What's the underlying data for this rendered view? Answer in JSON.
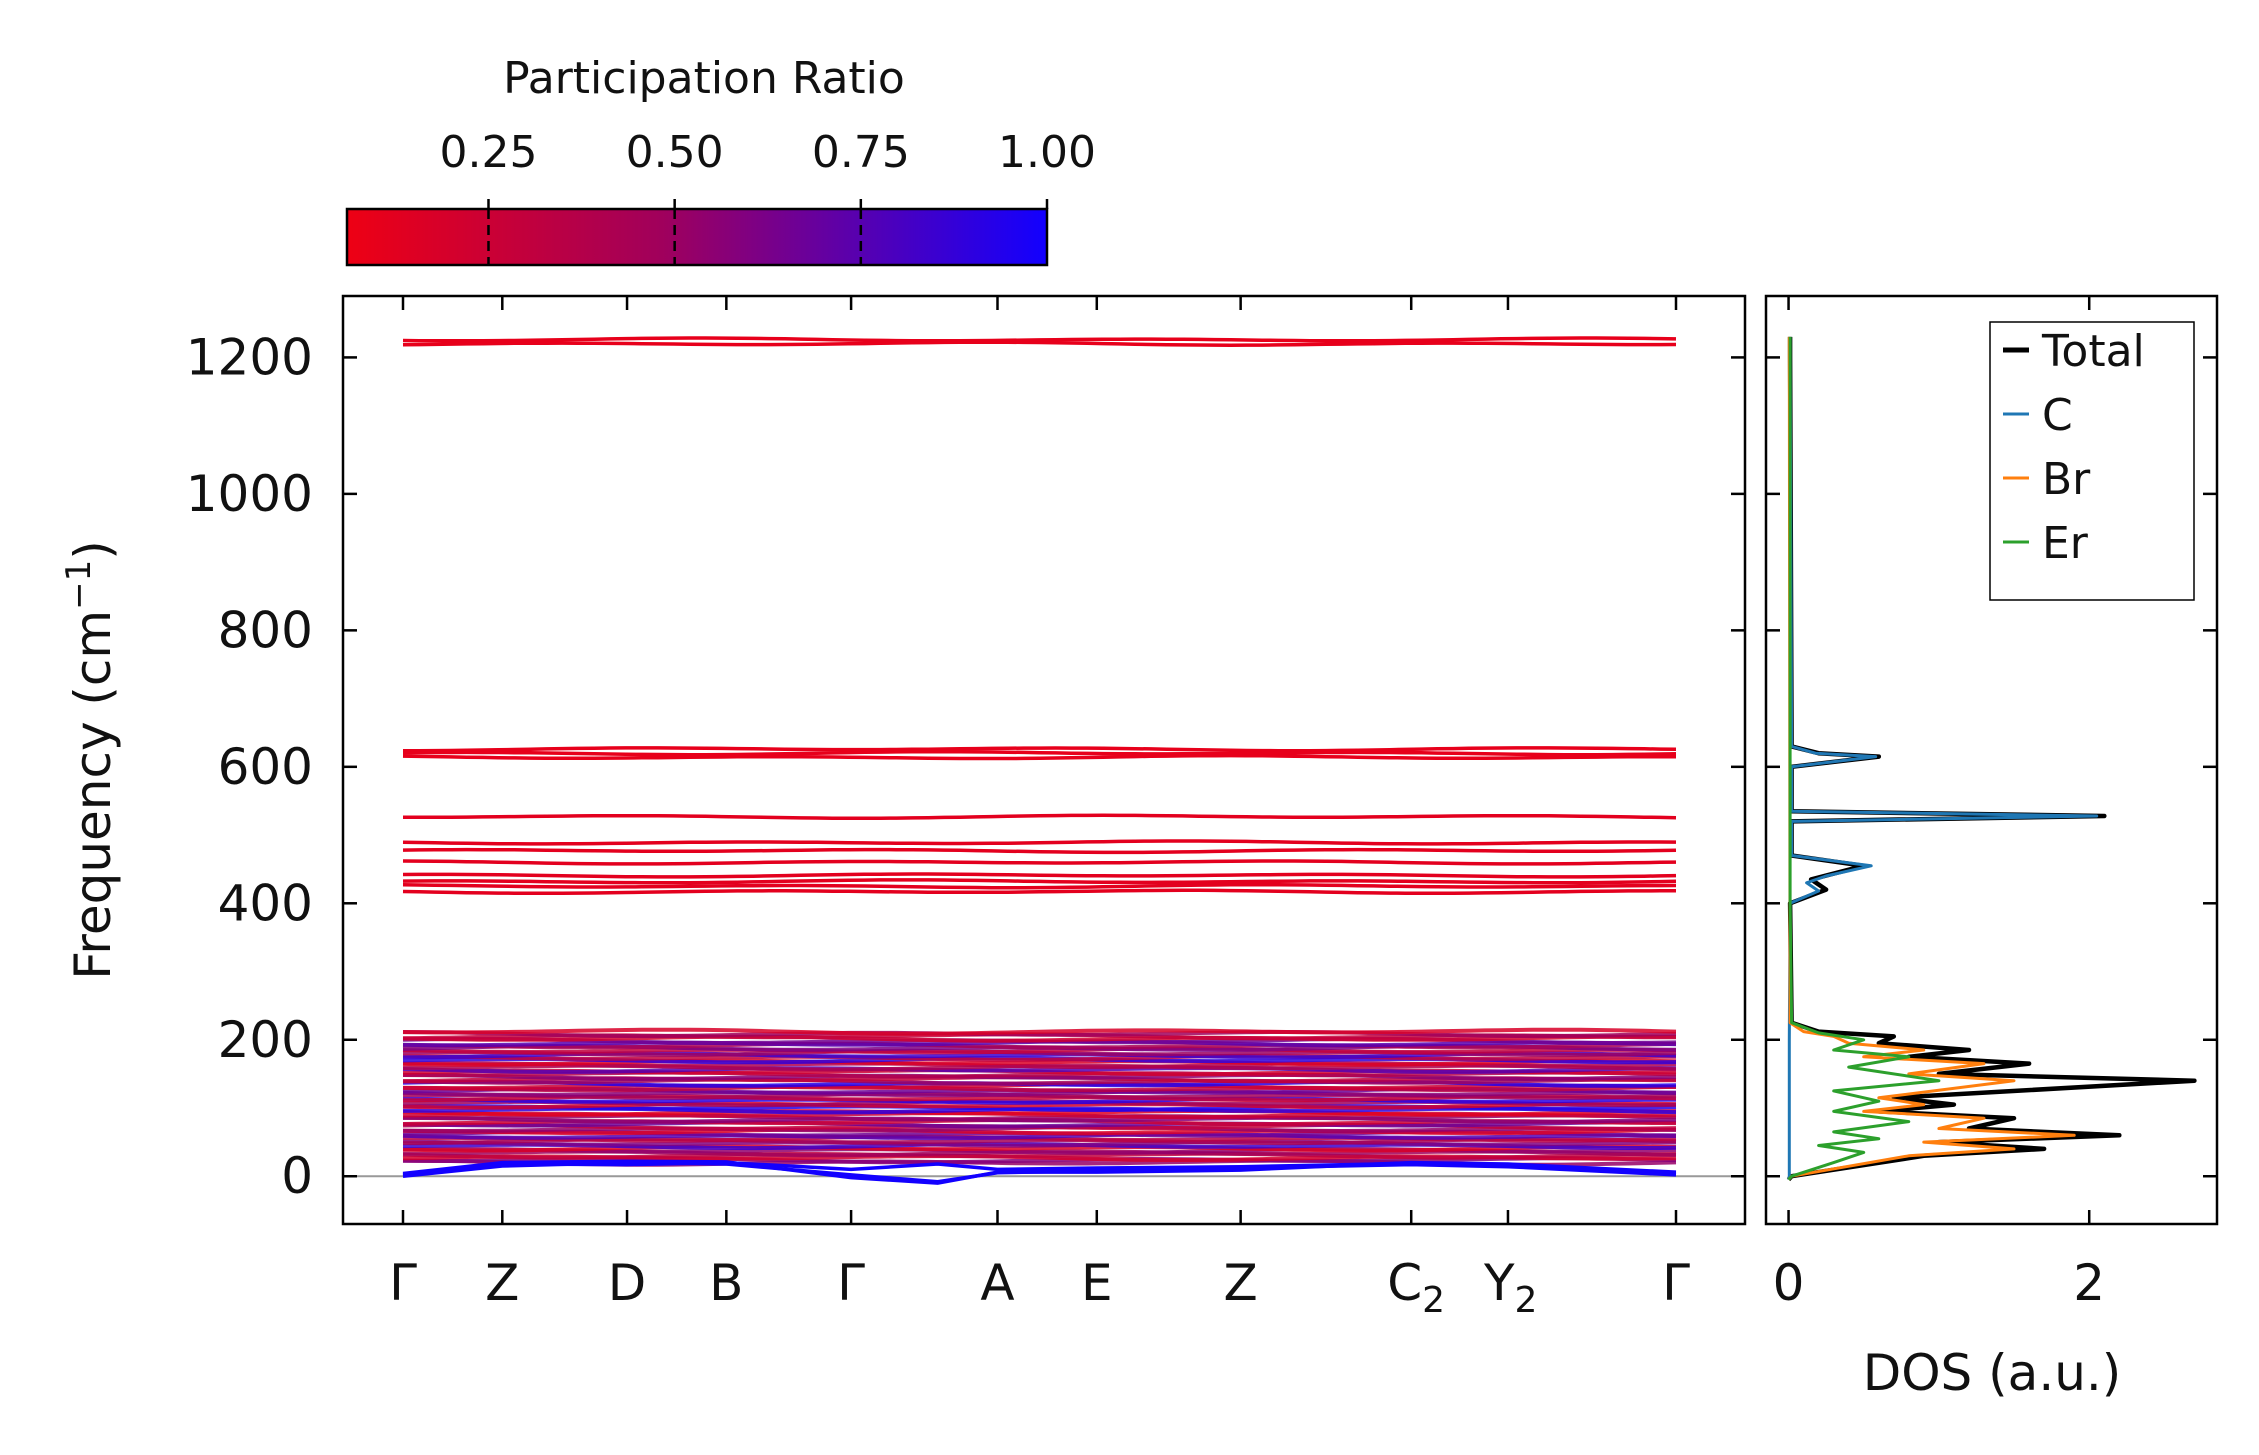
{
  "colorbar": {
    "title": "Participation Ratio",
    "ticks": [
      "0.25",
      "0.50",
      "0.75",
      "1.00"
    ],
    "tick_values": [
      0.25,
      0.5,
      0.75,
      1.0
    ],
    "range": [
      0.06,
      1.0
    ],
    "color_low": "#ee0014",
    "color_mid": "#a0005c",
    "color_high": "#1200ff"
  },
  "chart_data": [
    {
      "type": "line",
      "name": "phonon-band-structure",
      "ylabel": "Frequency (cm",
      "ylabel_sup": "−1",
      "ylabel_close": ")",
      "ylim": [
        -70,
        1290
      ],
      "y_ticks": [
        0,
        200,
        400,
        600,
        800,
        1000,
        1200
      ],
      "y_tick_labels": [
        "0",
        "200",
        "400",
        "600",
        "800",
        "1000",
        "1200"
      ],
      "k_labels": [
        {
          "main": "Γ",
          "sub": "",
          "pos": 0.0
        },
        {
          "main": "Z",
          "sub": "",
          "pos": 0.078
        },
        {
          "main": "D",
          "sub": "",
          "pos": 0.176
        },
        {
          "main": "B",
          "sub": "",
          "pos": 0.254
        },
        {
          "main": "Γ",
          "sub": "",
          "pos": 0.352
        },
        {
          "main": "A",
          "sub": "",
          "pos": 0.467
        },
        {
          "main": "E",
          "sub": "",
          "pos": 0.545
        },
        {
          "main": "Z",
          "sub": "",
          "pos": 0.658
        },
        {
          "main": "C",
          "sub": "2",
          "pos": 0.792
        },
        {
          "main": "Y",
          "sub": "2",
          "pos": 0.868
        },
        {
          "main": "Γ",
          "sub": "",
          "pos": 1.0
        }
      ],
      "high_bands": [
        {
          "freq": 1220,
          "pr": 0.1
        },
        {
          "freq": 1226,
          "pr": 0.1
        },
        {
          "freq": 614,
          "pr": 0.1
        },
        {
          "freq": 620,
          "pr": 0.1
        },
        {
          "freq": 626,
          "pr": 0.1
        },
        {
          "freq": 527,
          "pr": 0.12
        },
        {
          "freq": 489,
          "pr": 0.12
        },
        {
          "freq": 477,
          "pr": 0.12
        },
        {
          "freq": 460,
          "pr": 0.12
        },
        {
          "freq": 441,
          "pr": 0.12
        },
        {
          "freq": 432,
          "pr": 0.12
        },
        {
          "freq": 425,
          "pr": 0.12
        },
        {
          "freq": 417,
          "pr": 0.12
        }
      ],
      "low_band_range": [
        20,
        212
      ],
      "acoustic_bands": [
        {
          "name": "acoustic-1",
          "pr": 1.0,
          "points": [
            [
              0,
              0
            ],
            [
              0.078,
              15
            ],
            [
              0.176,
              20
            ],
            [
              0.254,
              18
            ],
            [
              0.352,
              2
            ],
            [
              0.42,
              -8
            ],
            [
              0.467,
              5
            ],
            [
              0.545,
              8
            ],
            [
              0.658,
              12
            ],
            [
              0.792,
              17
            ],
            [
              0.868,
              14
            ],
            [
              1.0,
              2
            ]
          ]
        },
        {
          "name": "acoustic-2",
          "pr": 1.0,
          "points": [
            [
              0,
              2
            ],
            [
              0.078,
              18
            ],
            [
              0.176,
              17
            ],
            [
              0.254,
              20
            ],
            [
              0.352,
              10
            ],
            [
              0.42,
              18
            ],
            [
              0.467,
              10
            ],
            [
              0.545,
              12
            ],
            [
              0.658,
              14
            ],
            [
              0.792,
              19
            ],
            [
              0.868,
              17
            ],
            [
              1.0,
              4
            ]
          ]
        },
        {
          "name": "acoustic-3",
          "pr": 1.0,
          "points": [
            [
              0,
              4
            ],
            [
              0.078,
              20
            ],
            [
              0.176,
              22
            ],
            [
              0.254,
              21
            ],
            [
              0.352,
              -2
            ],
            [
              0.42,
              -10
            ],
            [
              0.467,
              6
            ],
            [
              0.545,
              6
            ],
            [
              0.658,
              9
            ],
            [
              0.792,
              20
            ],
            [
              0.868,
              18
            ],
            [
              1.0,
              6
            ]
          ]
        }
      ]
    },
    {
      "type": "line",
      "name": "projected-dos",
      "xlabel": "DOS (a.u.)",
      "xlim": [
        -0.15,
        2.85
      ],
      "x_ticks": [
        0,
        2
      ],
      "x_tick_labels": [
        "0",
        "2"
      ],
      "ylim": [
        -70,
        1290
      ],
      "legend_position": "top-right",
      "series": [
        {
          "name": "Total",
          "color": "#000000",
          "points": [
            [
              0,
              -5
            ],
            [
              0.02,
              0
            ],
            [
              0.9,
              30
            ],
            [
              1.7,
              40
            ],
            [
              1.0,
              50
            ],
            [
              2.2,
              60
            ],
            [
              1.2,
              70
            ],
            [
              1.5,
              85
            ],
            [
              0.6,
              95
            ],
            [
              1.1,
              105
            ],
            [
              0.7,
              115
            ],
            [
              2.7,
              140
            ],
            [
              1.0,
              150
            ],
            [
              1.6,
              165
            ],
            [
              0.8,
              175
            ],
            [
              1.2,
              185
            ],
            [
              0.6,
              195
            ],
            [
              0.7,
              205
            ],
            [
              0.2,
              212
            ],
            [
              0.02,
              225
            ],
            [
              0.01,
              400
            ],
            [
              0.25,
              420
            ],
            [
              0.15,
              435
            ],
            [
              0.5,
              455
            ],
            [
              0.02,
              470
            ],
            [
              0.02,
              520
            ],
            [
              2.1,
              528
            ],
            [
              0.02,
              535
            ],
            [
              0.02,
              600
            ],
            [
              0.6,
              615
            ],
            [
              0.2,
              620
            ],
            [
              0.02,
              630
            ],
            [
              0.01,
              1200
            ],
            [
              0.01,
              1230
            ]
          ]
        },
        {
          "name": "C",
          "color": "#1f77b4",
          "points": [
            [
              0,
              -5
            ],
            [
              0.005,
              0
            ],
            [
              0.005,
              200
            ],
            [
              0.01,
              400
            ],
            [
              0.2,
              418
            ],
            [
              0.12,
              430
            ],
            [
              0.25,
              440
            ],
            [
              0.55,
              455
            ],
            [
              0.02,
              470
            ],
            [
              0.02,
              520
            ],
            [
              2.05,
              528
            ],
            [
              0.02,
              535
            ],
            [
              0.02,
              600
            ],
            [
              0.58,
              615
            ],
            [
              0.18,
              620
            ],
            [
              0.02,
              630
            ],
            [
              0.01,
              1200
            ],
            [
              0.01,
              1230
            ]
          ]
        },
        {
          "name": "Br",
          "color": "#ff7f0e",
          "points": [
            [
              0,
              -5
            ],
            [
              0.02,
              0
            ],
            [
              0.8,
              30
            ],
            [
              1.5,
              40
            ],
            [
              0.9,
              50
            ],
            [
              1.9,
              60
            ],
            [
              1.0,
              70
            ],
            [
              1.3,
              85
            ],
            [
              0.5,
              95
            ],
            [
              0.9,
              105
            ],
            [
              0.6,
              115
            ],
            [
              1.5,
              140
            ],
            [
              0.8,
              150
            ],
            [
              1.3,
              165
            ],
            [
              0.5,
              175
            ],
            [
              0.9,
              185
            ],
            [
              0.4,
              195
            ],
            [
              0.3,
              205
            ],
            [
              0.1,
              212
            ],
            [
              0.01,
              225
            ],
            [
              0.005,
              1230
            ]
          ]
        },
        {
          "name": "Er",
          "color": "#2ca02c",
          "points": [
            [
              0,
              -5
            ],
            [
              0.02,
              0
            ],
            [
              0.3,
              20
            ],
            [
              0.5,
              35
            ],
            [
              0.2,
              45
            ],
            [
              0.6,
              55
            ],
            [
              0.3,
              65
            ],
            [
              0.8,
              80
            ],
            [
              0.3,
              95
            ],
            [
              0.6,
              110
            ],
            [
              0.3,
              125
            ],
            [
              1.0,
              140
            ],
            [
              0.4,
              160
            ],
            [
              0.8,
              175
            ],
            [
              0.3,
              185
            ],
            [
              0.5,
              200
            ],
            [
              0.2,
              210
            ],
            [
              0.02,
              225
            ],
            [
              0.01,
              400
            ],
            [
              0.01,
              1230
            ]
          ]
        }
      ]
    }
  ]
}
